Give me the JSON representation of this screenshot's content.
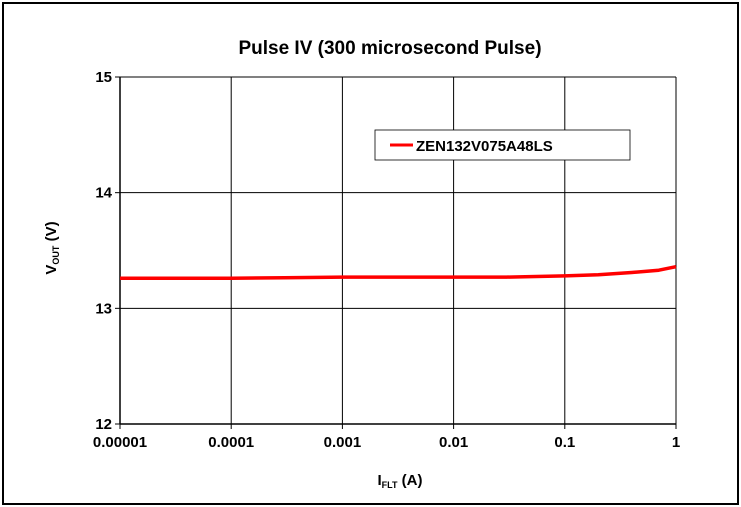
{
  "chart_data": {
    "type": "line",
    "title": "Pulse IV (300 microsecond Pulse)",
    "xlabel": {
      "main": "I",
      "sub": "FLT",
      "unit": " (A)"
    },
    "ylabel": {
      "main": "V",
      "sub": "OUT",
      "unit": " (V)"
    },
    "x_scale": "log",
    "xlim": [
      1e-05,
      1
    ],
    "ylim": [
      12,
      15
    ],
    "x_ticks": [
      1e-05,
      0.0001,
      0.001,
      0.01,
      0.1,
      1
    ],
    "x_tick_labels": [
      "0.00001",
      "0.0001",
      "0.001",
      "0.01",
      "0.1",
      "1"
    ],
    "y_ticks": [
      12,
      13,
      14,
      15
    ],
    "y_tick_labels": [
      "12",
      "13",
      "14",
      "15"
    ],
    "grid": true,
    "legend_position": "top-right",
    "series": [
      {
        "name": "ZEN132V075A48LS",
        "color": "#ff0000",
        "x": [
          1e-05,
          3e-05,
          0.0001,
          0.0003,
          0.001,
          0.003,
          0.01,
          0.03,
          0.1,
          0.2,
          0.4,
          0.7,
          1
        ],
        "y": [
          13.26,
          13.26,
          13.26,
          13.265,
          13.27,
          13.27,
          13.27,
          13.27,
          13.28,
          13.29,
          13.31,
          13.33,
          13.36
        ]
      }
    ]
  }
}
